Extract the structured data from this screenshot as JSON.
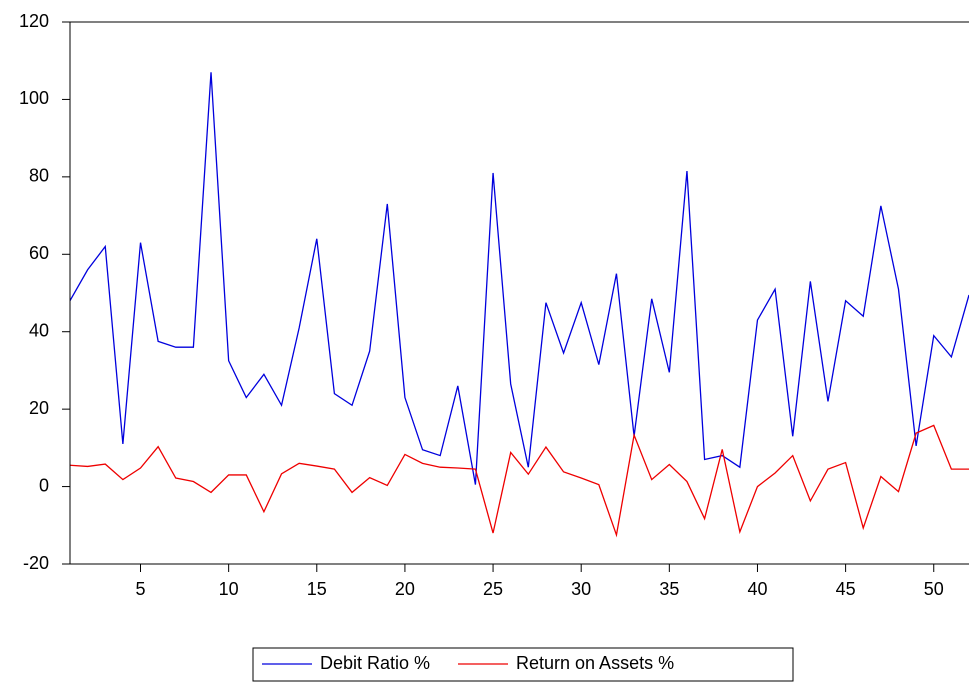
{
  "chart_data": {
    "type": "line",
    "x": [
      1,
      2,
      3,
      4,
      5,
      6,
      7,
      8,
      9,
      10,
      11,
      12,
      13,
      14,
      15,
      16,
      17,
      18,
      19,
      20,
      21,
      22,
      23,
      24,
      25,
      26,
      27,
      28,
      29,
      30,
      31,
      32,
      33,
      34,
      35,
      36,
      37,
      38,
      39,
      40,
      41,
      42,
      43,
      44,
      45,
      46,
      47,
      48,
      49,
      50,
      51,
      52
    ],
    "series": [
      {
        "name": "Debit Ratio %",
        "color": "#0000dd",
        "values": [
          48,
          56,
          62,
          11,
          63,
          37.5,
          36,
          36,
          107,
          32.5,
          23,
          29,
          21,
          41,
          64,
          24,
          21,
          35,
          73,
          23,
          9.5,
          8,
          26,
          0.5,
          81,
          26.5,
          5,
          47.5,
          34.5,
          47.5,
          31.5,
          55,
          13,
          48.5,
          29.5,
          81.5,
          7,
          8,
          5,
          43,
          51,
          13,
          53,
          22,
          48,
          44,
          72.5,
          51,
          10.5,
          39,
          33.5,
          49.5
        ]
      },
      {
        "name": "Return on Assets %",
        "color": "#ee0000",
        "values": [
          5.5,
          5.2,
          5.8,
          1.8,
          4.8,
          10.3,
          2.2,
          1.3,
          -1.5,
          3,
          3,
          -6.5,
          3.3,
          6,
          5.3,
          4.5,
          -1.5,
          2.3,
          0.3,
          8.3,
          6,
          5,
          4.8,
          4.5,
          -12,
          8.8,
          3.2,
          10.2,
          3.8,
          2.2,
          0.5,
          -12.5,
          13.3,
          1.8,
          5.7,
          1.3,
          -8.3,
          9.6,
          -11.7,
          0,
          3.5,
          8,
          -3.7,
          4.5,
          6.2,
          -10.7,
          2.6,
          -1.3,
          13.8,
          15.8,
          4.5,
          4.5
        ]
      }
    ],
    "xlim": [
      1,
      52
    ],
    "xticks": [
      5,
      10,
      15,
      20,
      25,
      30,
      35,
      40,
      45,
      50
    ],
    "ylim": [
      -20,
      120
    ],
    "yticks": [
      -20,
      0,
      20,
      40,
      60,
      80,
      100,
      120
    ]
  }
}
